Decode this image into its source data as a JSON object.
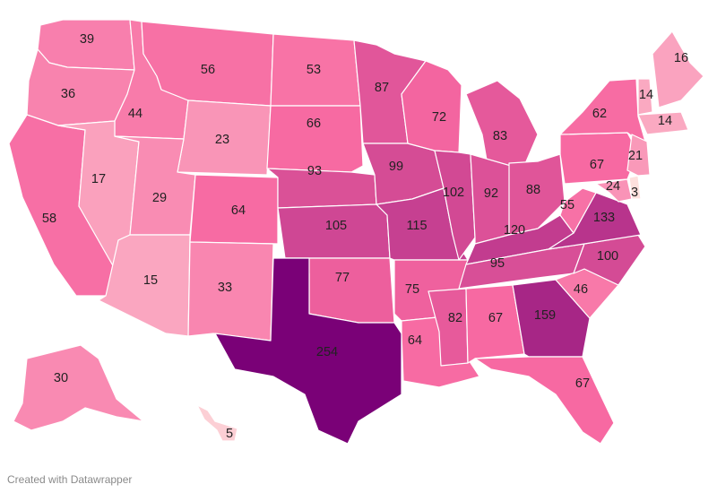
{
  "map": {
    "type": "choropleth",
    "region": "United States",
    "values": {
      "WA": 39,
      "OR": 36,
      "CA": 58,
      "ID": 44,
      "NV": 17,
      "MT": 56,
      "WY": 23,
      "UT": 29,
      "AZ": 15,
      "CO": 64,
      "NM": 33,
      "ND": 53,
      "SD": 66,
      "NE": 93,
      "KS": 105,
      "OK": 77,
      "TX": 254,
      "MN": 87,
      "IA": 99,
      "MO": 115,
      "AR": 75,
      "LA": 64,
      "WI": 72,
      "IL": 102,
      "MI": 83,
      "IN": 92,
      "OH": 88,
      "KY": 120,
      "TN": 95,
      "MS": 82,
      "AL": 67,
      "GA": 159,
      "FL": 67,
      "SC": 46,
      "NC": 100,
      "VA": 133,
      "WV": 55,
      "PA": 67,
      "NY": 62,
      "MD": 24,
      "DE": 3,
      "NJ": 21,
      "CT": 14,
      "ME": 16,
      "VT": 14,
      "AK": 30,
      "HI": 5
    },
    "color_scale": {
      "low": "#fde0dd",
      "mid": "#f768a1",
      "high": "#7a0177"
    }
  },
  "footer": {
    "credit": "Created with Datawrapper"
  }
}
